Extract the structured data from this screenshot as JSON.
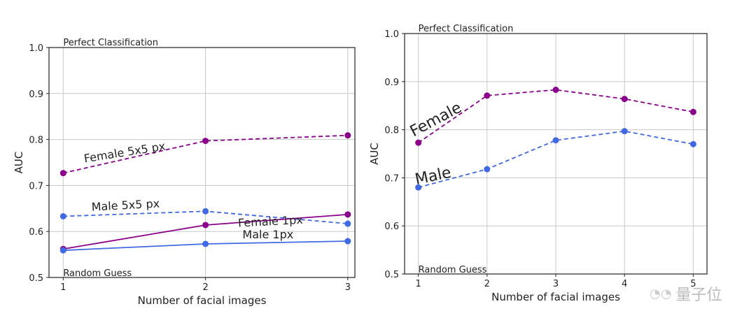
{
  "chart_data": [
    {
      "type": "line",
      "xlabel": "Number of facial images",
      "ylabel": "AUC",
      "x": [
        1,
        2,
        3
      ],
      "xticks": [
        "1",
        "2",
        "3"
      ],
      "xlim": [
        0.9,
        3.05
      ],
      "ylim": [
        0.5,
        1.0
      ],
      "yticks": [
        "0.5",
        "0.6",
        "0.7",
        "0.8",
        "0.9",
        "1.0"
      ],
      "grid": true,
      "annotations": {
        "top": "Perfect Classification",
        "bottom": "Random Guess"
      },
      "series": [
        {
          "name": "Female 5x5 px",
          "values": [
            0.727,
            0.797,
            0.809
          ],
          "color": "#8b008b",
          "dashed": true,
          "label_at": [
            1.15,
            0.75
          ],
          "label_angle": -9
        },
        {
          "name": "Male 5x5 px",
          "values": [
            0.633,
            0.644,
            0.617
          ],
          "color": "#4169e1",
          "dashed": true,
          "label_at": [
            1.2,
            0.645
          ],
          "label_angle": -3
        },
        {
          "name": "Female 1px",
          "values": [
            0.562,
            0.614,
            0.637
          ],
          "color": "#8b008b",
          "dashed": false,
          "label_at": [
            2.23,
            0.61
          ],
          "label_angle": -3
        },
        {
          "name": "Male 1px",
          "values": [
            0.559,
            0.573,
            0.579
          ],
          "color": "#4169e1",
          "dashed": false,
          "label_at": [
            2.26,
            0.585
          ],
          "label_angle": 0
        }
      ]
    },
    {
      "type": "line",
      "xlabel": "Number of facial images",
      "ylabel": "AUC",
      "x": [
        1,
        2,
        3,
        4,
        5
      ],
      "xticks": [
        "1",
        "2",
        "3",
        "4",
        "5"
      ],
      "xlim": [
        0.8,
        5.2
      ],
      "ylim": [
        0.5,
        1.0
      ],
      "yticks": [
        "0.5",
        "0.6",
        "0.7",
        "0.8",
        "0.9",
        "1.0"
      ],
      "grid": true,
      "annotations": {
        "top": "Perfect Classification",
        "bottom": "Random Guess"
      },
      "series": [
        {
          "name": "Female",
          "values": [
            0.773,
            0.871,
            0.883,
            0.864,
            0.837
          ],
          "color": "#8b008b",
          "dashed": true,
          "label_at": [
            0.93,
            0.785
          ],
          "label_angle": -28
        },
        {
          "name": "Male",
          "values": [
            0.68,
            0.718,
            0.778,
            0.797,
            0.77
          ],
          "color": "#4169e1",
          "dashed": true,
          "label_at": [
            0.97,
            0.686
          ],
          "label_angle": -12
        }
      ]
    }
  ],
  "watermark": "量子位"
}
